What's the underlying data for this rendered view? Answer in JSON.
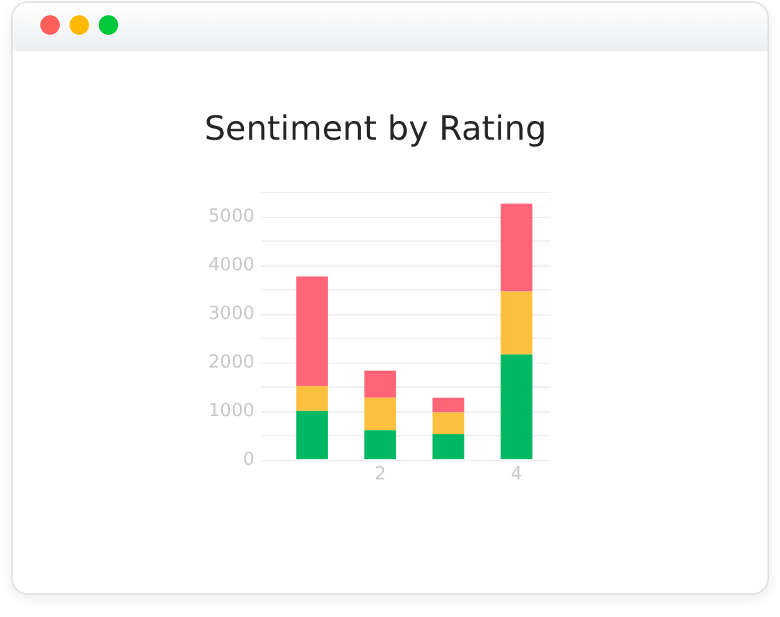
{
  "chart_data": {
    "type": "bar",
    "title": "Sentiment by Rating",
    "categories": [
      null,
      "2",
      null,
      "4"
    ],
    "stacked": true,
    "series": [
      {
        "color": "#00b863",
        "values": [
          1010,
          610,
          530,
          2170
        ]
      },
      {
        "color": "#fdc03e",
        "values": [
          510,
          670,
          450,
          1300
        ]
      },
      {
        "color": "#ff6577",
        "values": [
          2260,
          560,
          300,
          1810
        ]
      }
    ],
    "ylim": [
      0,
      5500
    ],
    "yticks": [
      0,
      {
        "value": 500,
        "label": null
      },
      1000,
      {
        "value": 1500,
        "label": null
      },
      2000,
      {
        "value": 2500,
        "label": null
      },
      3000,
      {
        "value": 3500,
        "label": null
      },
      4000,
      {
        "value": 4500,
        "label": null
      },
      5000,
      {
        "value": 5500,
        "label": null
      }
    ],
    "grid": "y"
  }
}
